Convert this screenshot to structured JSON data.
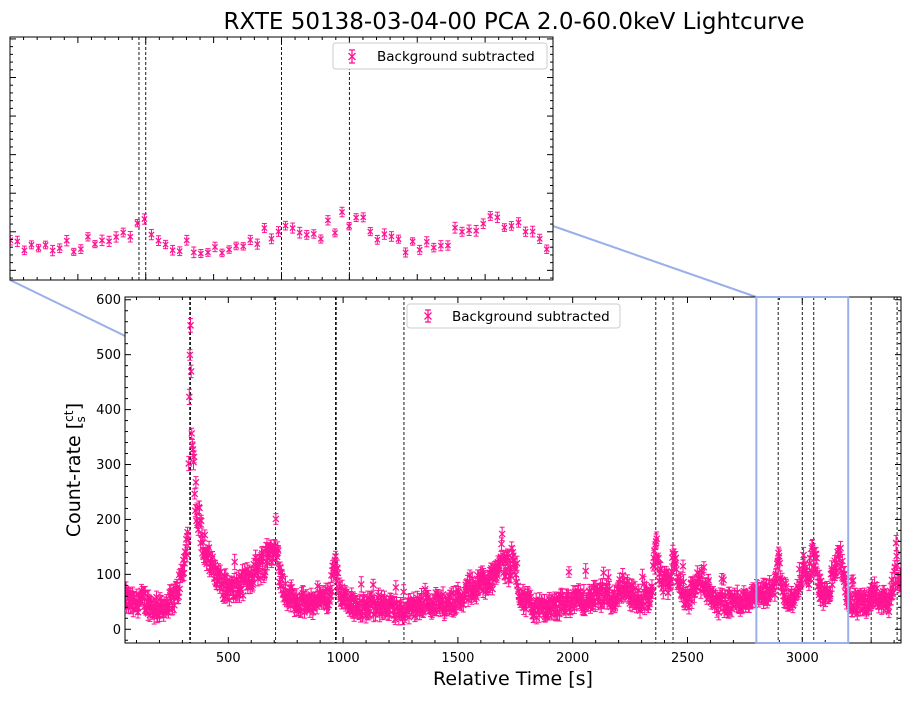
{
  "title": "RXTE 50138-03-04-00 PCA 2.0-60.0keV Lightcurve",
  "colors": {
    "data": "#ff1493",
    "zoom": "#9ab0ea",
    "vline": "#000000"
  },
  "chart_data": [
    {
      "type": "scatter",
      "name": "main",
      "title": "RXTE 50138-03-04-00 PCA 2.0-60.0keV Lightcurve",
      "xlabel": "Relative Time [s]",
      "ylabel": "Count-rate [ct/s]",
      "xlim": [
        50,
        3430
      ],
      "ylim": [
        -25,
        605
      ],
      "xticks": [
        500,
        1000,
        1500,
        2000,
        2500,
        3000
      ],
      "yticks": [
        0,
        100,
        200,
        300,
        400,
        500,
        600
      ],
      "legend": "Background subtracted",
      "legend_loc": "upper center",
      "series_note": "error-bar points, Background subtracted",
      "vlines": [
        332,
        335,
        706,
        967,
        970,
        1265,
        2362,
        2437,
        2895,
        3000,
        3050,
        3300,
        3413
      ],
      "zoom_box": {
        "x": [
          2800,
          3200
        ],
        "y": [
          -25,
          605
        ]
      },
      "anchors": [
        [
          55,
          55
        ],
        [
          90,
          45
        ],
        [
          130,
          55
        ],
        [
          180,
          35
        ],
        [
          230,
          45
        ],
        [
          270,
          60
        ],
        [
          300,
          100
        ],
        [
          315,
          140
        ],
        [
          325,
          190
        ],
        [
          332,
          470
        ],
        [
          336,
          520
        ],
        [
          340,
          420
        ],
        [
          346,
          330
        ],
        [
          352,
          280
        ],
        [
          362,
          220
        ],
        [
          380,
          180
        ],
        [
          400,
          150
        ],
        [
          430,
          110
        ],
        [
          470,
          80
        ],
        [
          520,
          70
        ],
        [
          570,
          85
        ],
        [
          620,
          110
        ],
        [
          660,
          125
        ],
        [
          690,
          150
        ],
        [
          706,
          185
        ],
        [
          720,
          110
        ],
        [
          745,
          70
        ],
        [
          800,
          50
        ],
        [
          850,
          45
        ],
        [
          900,
          55
        ],
        [
          940,
          60
        ],
        [
          965,
          125
        ],
        [
          980,
          75
        ],
        [
          1020,
          50
        ],
        [
          1080,
          40
        ],
        [
          1150,
          45
        ],
        [
          1200,
          40
        ],
        [
          1260,
          30
        ],
        [
          1300,
          40
        ],
        [
          1350,
          45
        ],
        [
          1400,
          50
        ],
        [
          1450,
          45
        ],
        [
          1500,
          55
        ],
        [
          1560,
          75
        ],
        [
          1620,
          85
        ],
        [
          1660,
          95
        ],
        [
          1690,
          150
        ],
        [
          1710,
          110
        ],
        [
          1740,
          120
        ],
        [
          1770,
          65
        ],
        [
          1820,
          40
        ],
        [
          1880,
          35
        ],
        [
          1940,
          45
        ],
        [
          2000,
          50
        ],
        [
          2060,
          55
        ],
        [
          2120,
          60
        ],
        [
          2180,
          55
        ],
        [
          2220,
          85
        ],
        [
          2250,
          65
        ],
        [
          2300,
          50
        ],
        [
          2340,
          60
        ],
        [
          2362,
          140
        ],
        [
          2380,
          90
        ],
        [
          2420,
          75
        ],
        [
          2437,
          135
        ],
        [
          2460,
          85
        ],
        [
          2500,
          55
        ],
        [
          2540,
          80
        ],
        [
          2570,
          95
        ],
        [
          2600,
          55
        ],
        [
          2650,
          45
        ],
        [
          2700,
          50
        ],
        [
          2750,
          55
        ],
        [
          2800,
          60
        ],
        [
          2850,
          65
        ],
        [
          2880,
          80
        ],
        [
          2895,
          125
        ],
        [
          2915,
          75
        ],
        [
          2945,
          55
        ],
        [
          2975,
          55
        ],
        [
          3000,
          120
        ],
        [
          3020,
          85
        ],
        [
          3050,
          140
        ],
        [
          3075,
          75
        ],
        [
          3105,
          55
        ],
        [
          3140,
          110
        ],
        [
          3165,
          130
        ],
        [
          3195,
          55
        ],
        [
          3240,
          45
        ],
        [
          3285,
          50
        ],
        [
          3310,
          70
        ],
        [
          3340,
          55
        ],
        [
          3380,
          50
        ],
        [
          3413,
          120
        ],
        [
          3425,
          80
        ]
      ]
    },
    {
      "type": "scatter",
      "name": "inset",
      "xlim": [
        2800,
        3200
      ],
      "ylim": [
        -25,
        605
      ],
      "legend": "Background subtracted",
      "legend_loc": "upper right",
      "vlines": [
        2895,
        2900,
        3000,
        3050
      ],
      "series_note": "zoomed view of the 2800-3200 s window (axis tick labels hidden)"
    }
  ]
}
